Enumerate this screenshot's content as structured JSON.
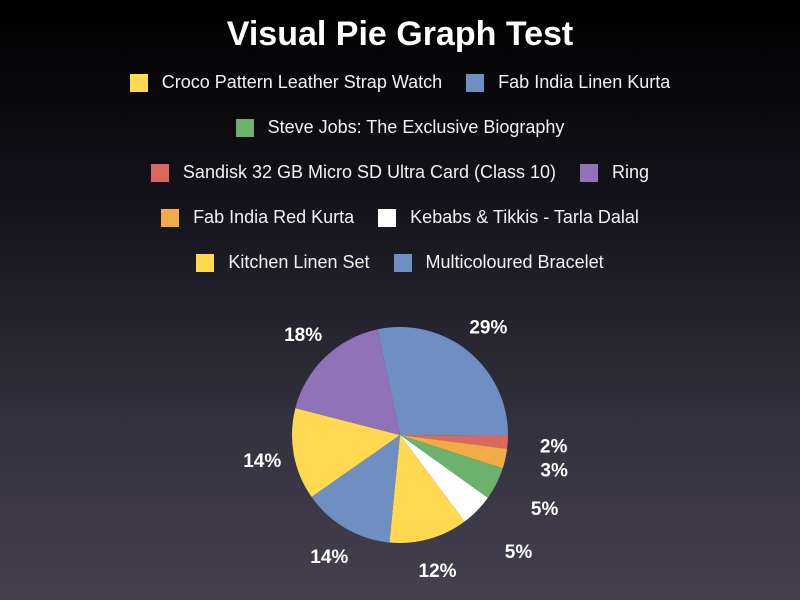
{
  "chart_data": {
    "type": "pie",
    "title": "Visual Pie Graph Test",
    "legend_position": "top",
    "slices": [
      {
        "name": "Fab India Linen Kurta",
        "value": 29,
        "label": "29%",
        "color": "#6f8fc3"
      },
      {
        "name": "Sandisk 32 GB Micro SD Ultra Card (Class 10)",
        "value": 2,
        "label": "2%",
        "color": "#d9695f"
      },
      {
        "name": "Fab India Red Kurta",
        "value": 3,
        "label": "3%",
        "color": "#f2ac47"
      },
      {
        "name": "Steve Jobs: The Exclusive Biography",
        "value": 5,
        "label": "5%",
        "color": "#6cb26e"
      },
      {
        "name": "Kebabs & Tikkis - Tarla Dalal",
        "value": 5,
        "label": "5%",
        "color": "#ffffff"
      },
      {
        "name": "Kitchen Linen Set",
        "value": 12,
        "label": "12%",
        "color": "#ffd94f"
      },
      {
        "name": "Multicoloured Bracelet",
        "value": 14,
        "label": "14%",
        "color": "#6f8fc3"
      },
      {
        "name": "Croco Pattern Leather Strap Watch",
        "value": 14,
        "label": "14%",
        "color": "#ffd94f"
      },
      {
        "name": "Ring",
        "value": 18,
        "label": "18%",
        "color": "#8f72b8"
      }
    ],
    "legend_rows": [
      [
        {
          "label": "Croco Pattern Leather Strap Watch",
          "color": "#ffd94f"
        },
        {
          "label": "Fab India Linen Kurta",
          "color": "#6f8fc3"
        }
      ],
      [
        {
          "label": "Steve Jobs: The Exclusive Biography",
          "color": "#6cb26e"
        }
      ],
      [
        {
          "label": "Sandisk 32 GB Micro SD Ultra Card (Class 10)",
          "color": "#d9695f"
        },
        {
          "label": "Ring",
          "color": "#8f72b8"
        }
      ],
      [
        {
          "label": "Fab India Red Kurta",
          "color": "#f2ac47"
        },
        {
          "label": "Kebabs & Tikkis - Tarla Dalal",
          "color": "#ffffff"
        }
      ],
      [
        {
          "label": "Kitchen Linen Set",
          "color": "#ffd94f"
        },
        {
          "label": "Multicoloured Bracelet",
          "color": "#6f8fc3"
        }
      ]
    ]
  }
}
